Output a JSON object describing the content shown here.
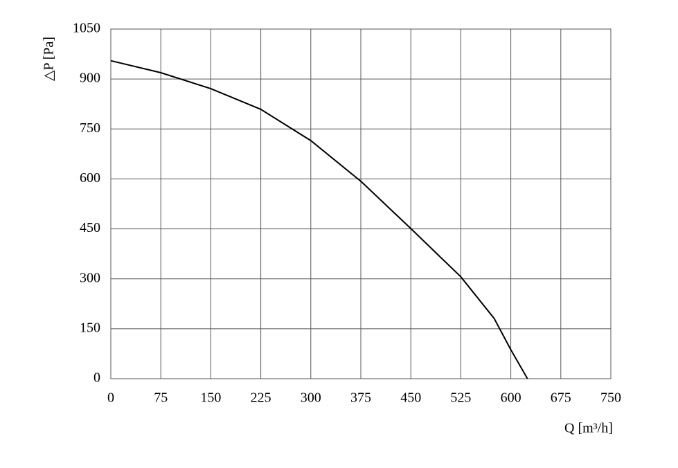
{
  "chart_data": {
    "type": "line",
    "x_label": "Q [m³/h]",
    "y_label": "△P [Pa]",
    "x": [
      0,
      75,
      150,
      225,
      300,
      375,
      450,
      525,
      575,
      600,
      625
    ],
    "values": [
      955,
      919,
      871,
      809,
      715,
      593,
      451,
      306,
      181,
      87,
      0
    ],
    "color": "#000000",
    "xlim": [
      0,
      750
    ],
    "xticks": [
      0,
      75,
      150,
      225,
      300,
      375,
      450,
      525,
      600,
      675,
      750
    ],
    "ylim": [
      0,
      1050
    ],
    "yticks": [
      0,
      150,
      300,
      450,
      600,
      750,
      900,
      1050
    ],
    "grid": true
  }
}
